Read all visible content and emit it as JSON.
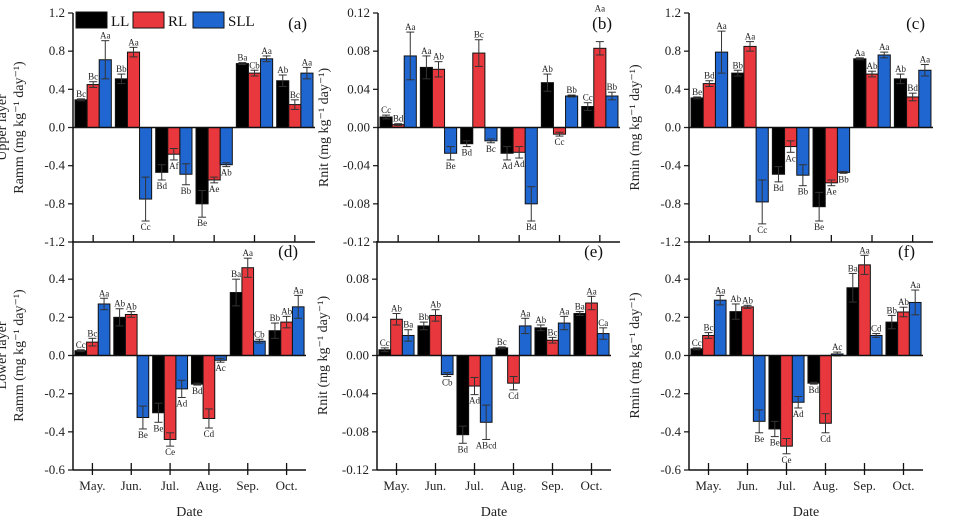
{
  "legend": [
    {
      "name": "LL",
      "color": "#000000"
    },
    {
      "name": "RL",
      "color": "#e8383d"
    },
    {
      "name": "SLL",
      "color": "#1f66d0"
    }
  ],
  "chart_data": [
    {
      "type": "bar",
      "panel": "(a)",
      "row_label": "Upper layer",
      "ylabel": "Ramm (mg kg⁻¹ day⁻¹)",
      "xlabel": "",
      "ylim": [
        -1.2,
        1.2
      ],
      "yticks": [
        "1.2",
        "0.8",
        "0.4",
        "0.0",
        "-0.4",
        "-0.8",
        "-1.2"
      ],
      "categories": [
        "May.",
        "Jun.",
        "Jul.",
        "Aug.",
        "Sep.",
        "Oct."
      ],
      "series": [
        {
          "name": "LL",
          "values": [
            0.29,
            0.51,
            -0.47,
            -0.8,
            0.67,
            0.49
          ],
          "errors": [
            0.01,
            0.05,
            0.08,
            0.14,
            0.01,
            0.06
          ],
          "letters": [
            "Bc",
            "Bb",
            "Bd",
            "Be",
            "Ba",
            "Ab"
          ]
        },
        {
          "name": "RL",
          "values": [
            0.45,
            0.79,
            -0.28,
            -0.55,
            0.57,
            0.24
          ],
          "errors": [
            0.03,
            0.05,
            0.06,
            0.03,
            0.03,
            0.05
          ],
          "letters": [
            "Bc",
            "Aa",
            "Af",
            "Ae",
            "Cb",
            "Bc"
          ]
        },
        {
          "name": "SLL",
          "values": [
            0.71,
            -0.75,
            -0.49,
            -0.39,
            0.72,
            0.57
          ],
          "errors": [
            0.2,
            0.23,
            0.11,
            0.02,
            0.03,
            0.06
          ],
          "letters": [
            "Aa",
            "Cc",
            "Bb",
            "Ab",
            "Aa",
            "Aa"
          ]
        }
      ]
    },
    {
      "type": "bar",
      "panel": "(b)",
      "ylabel": "Rnit (mg kg⁻¹ day⁻¹)",
      "xlabel": "",
      "ylim": [
        -0.12,
        0.12
      ],
      "yticks": [
        "0.12",
        "0.08",
        "0.04",
        "0.00",
        "-0.04",
        "-0.08",
        "-0.12"
      ],
      "categories": [
        "May.",
        "Jun.",
        "Jul.",
        "Aug.",
        "Sep.",
        "Oct."
      ],
      "series": [
        {
          "name": "LL",
          "values": [
            0.011,
            0.063,
            -0.017,
            -0.027,
            0.047,
            0.022
          ],
          "errors": [
            0.002,
            0.012,
            0.003,
            0.007,
            0.009,
            0.004
          ],
          "letters": [
            "Cc",
            "Aa",
            "Bd",
            "Ad",
            "Ab",
            "Cc"
          ]
        },
        {
          "name": "RL",
          "values": [
            0.003,
            0.061,
            0.078,
            -0.026,
            -0.007,
            0.083
          ],
          "errors": [
            0.001,
            0.008,
            0.014,
            0.006,
            0.002,
            0.007
          ],
          "letters": [
            "Bd",
            "Ab",
            "Bc",
            "Ad",
            "Cc",
            "Aa"
          ]
        },
        {
          "name": "SLL",
          "values": [
            0.075,
            -0.027,
            -0.014,
            -0.08,
            0.033,
            0.033
          ],
          "errors": [
            0.025,
            0.007,
            0.002,
            0.018,
            0.001,
            0.004
          ],
          "letters": [
            "Aa",
            "Be",
            "Bc",
            "Bd",
            "Bb",
            "Bb"
          ]
        }
      ]
    },
    {
      "type": "bar",
      "panel": "(c)",
      "ylabel": "Rmin (mg kg⁻¹ day⁻¹)",
      "xlabel": "",
      "ylim": [
        -1.2,
        1.2
      ],
      "yticks": [
        "1.2",
        "0.8",
        "0.4",
        "0.0",
        "-0.4",
        "-0.8",
        "-1.2"
      ],
      "categories": [
        "May.",
        "Jun.",
        "Jul.",
        "Aug.",
        "Sep.",
        "Oct."
      ],
      "series": [
        {
          "name": "LL",
          "values": [
            0.31,
            0.57,
            -0.49,
            -0.83,
            0.72,
            0.51
          ],
          "errors": [
            0.01,
            0.03,
            0.08,
            0.15,
            0.01,
            0.05
          ],
          "letters": [
            "Be",
            "Bb",
            "Bd",
            "Be",
            "Aa",
            "Ab"
          ]
        },
        {
          "name": "RL",
          "values": [
            0.46,
            0.85,
            -0.2,
            -0.58,
            0.56,
            0.32
          ],
          "errors": [
            0.03,
            0.05,
            0.06,
            0.03,
            0.03,
            0.04
          ],
          "letters": [
            "Bd",
            "Aa",
            "Ac",
            "Ae",
            "Ab",
            "Bd"
          ]
        },
        {
          "name": "SLL",
          "values": [
            0.79,
            -0.78,
            -0.5,
            -0.47,
            0.76,
            0.6
          ],
          "errors": [
            0.22,
            0.23,
            0.11,
            0.01,
            0.03,
            0.06
          ],
          "letters": [
            "Aa",
            "Cc",
            "Bb",
            "Bb",
            "Aa",
            "Aa"
          ]
        }
      ]
    },
    {
      "type": "bar",
      "panel": "(d)",
      "row_label": "Lower layer",
      "ylabel": "Ramm (mg kg⁻¹ day⁻¹)",
      "xlabel": "Date",
      "ylim": [
        -0.6,
        0.6
      ],
      "yticks": [
        "0.4",
        "0.2",
        "0.0",
        "-0.2",
        "-0.4",
        "-0.6"
      ],
      "categories": [
        "May.",
        "Jun.",
        "Jul.",
        "Aug.",
        "Sep.",
        "Oct."
      ],
      "series": [
        {
          "name": "LL",
          "values": [
            0.025,
            0.2,
            -0.3,
            -0.15,
            0.33,
            0.13
          ],
          "errors": [
            0.005,
            0.045,
            0.05,
            0.005,
            0.07,
            0.04
          ],
          "letters": [
            "Cc",
            "Ab",
            "Be",
            "Bd",
            "Ba",
            "Bb"
          ]
        },
        {
          "name": "RL",
          "values": [
            0.07,
            0.215,
            -0.44,
            -0.33,
            0.46,
            0.175
          ],
          "errors": [
            0.02,
            0.015,
            0.035,
            0.05,
            0.05,
            0.03
          ],
          "letters": [
            "Bc",
            "Ab",
            "Ce",
            "Cd",
            "Aa",
            "Ab"
          ]
        },
        {
          "name": "SLL",
          "values": [
            0.27,
            -0.325,
            -0.175,
            -0.025,
            0.075,
            0.255
          ],
          "errors": [
            0.03,
            0.06,
            0.045,
            0.01,
            0.01,
            0.06
          ],
          "letters": [
            "Aa",
            "Be",
            "Ad",
            "Ac",
            "Cb",
            "Aa"
          ]
        }
      ]
    },
    {
      "type": "bar",
      "panel": "(e)",
      "ylabel": "Rnit (mg kg⁻¹ day⁻¹)",
      "xlabel": "Date",
      "ylim": [
        -0.12,
        0.12
      ],
      "yticks": [
        "0.08",
        "0.04",
        "0.00",
        "-0.04",
        "-0.08",
        "-0.12"
      ],
      "categories": [
        "May.",
        "Jun.",
        "Jul.",
        "Aug.",
        "Sep.",
        "Oct."
      ],
      "series": [
        {
          "name": "LL",
          "values": [
            0.006,
            0.031,
            -0.083,
            0.008,
            0.029,
            0.044
          ],
          "errors": [
            0.002,
            0.004,
            0.009,
            0.001,
            0.003,
            0.002
          ],
          "letters": [
            "Cc",
            "Bb",
            "Bd",
            "Bc",
            "Ab",
            "Ba"
          ]
        },
        {
          "name": "RL",
          "values": [
            0.038,
            0.042,
            -0.032,
            -0.029,
            0.016,
            0.055
          ],
          "errors": [
            0.006,
            0.006,
            0.009,
            0.007,
            0.003,
            0.007
          ],
          "letters": [
            "Ab",
            "Ab",
            "Ad",
            "Cd",
            "Bc",
            "Aa"
          ]
        },
        {
          "name": "SLL",
          "values": [
            0.021,
            -0.02,
            -0.07,
            0.031,
            0.034,
            0.023
          ],
          "errors": [
            0.006,
            0.002,
            0.018,
            0.008,
            0.007,
            0.006
          ],
          "letters": [
            "Ba",
            "Cb",
            "ABcd",
            "Aa",
            "Aa",
            "Ca"
          ]
        }
      ]
    },
    {
      "type": "bar",
      "panel": "(f)",
      "ylabel": "Rmin (mg kg⁻¹ day⁻¹)",
      "xlabel": "Date",
      "ylim": [
        -0.6,
        0.6
      ],
      "yticks": [
        "0.4",
        "0.2",
        "0.0",
        "-0.2",
        "-0.4",
        "-0.6"
      ],
      "categories": [
        "May.",
        "Jun.",
        "Jul.",
        "Aug.",
        "Sep.",
        "Oct."
      ],
      "series": [
        {
          "name": "LL",
          "values": [
            0.035,
            0.23,
            -0.385,
            -0.145,
            0.355,
            0.175
          ],
          "errors": [
            0.005,
            0.04,
            0.04,
            0.005,
            0.075,
            0.035
          ],
          "letters": [
            "Cc",
            "Ab",
            "Be",
            "Bd",
            "Ba",
            "Bb"
          ]
        },
        {
          "name": "RL",
          "values": [
            0.105,
            0.255,
            -0.475,
            -0.355,
            0.475,
            0.228
          ],
          "errors": [
            0.015,
            0.008,
            0.04,
            0.05,
            0.05,
            0.025
          ],
          "letters": [
            "Bc",
            "Ab",
            "Ce",
            "Cd",
            "Aa",
            "Ab"
          ]
        },
        {
          "name": "SLL",
          "values": [
            0.29,
            -0.345,
            -0.245,
            0.008,
            0.105,
            0.278
          ],
          "errors": [
            0.025,
            0.06,
            0.03,
            0.01,
            0.01,
            0.065
          ],
          "letters": [
            "Aa",
            "Be",
            "Ad",
            "Ac",
            "Cd",
            "Aa"
          ]
        }
      ]
    }
  ]
}
